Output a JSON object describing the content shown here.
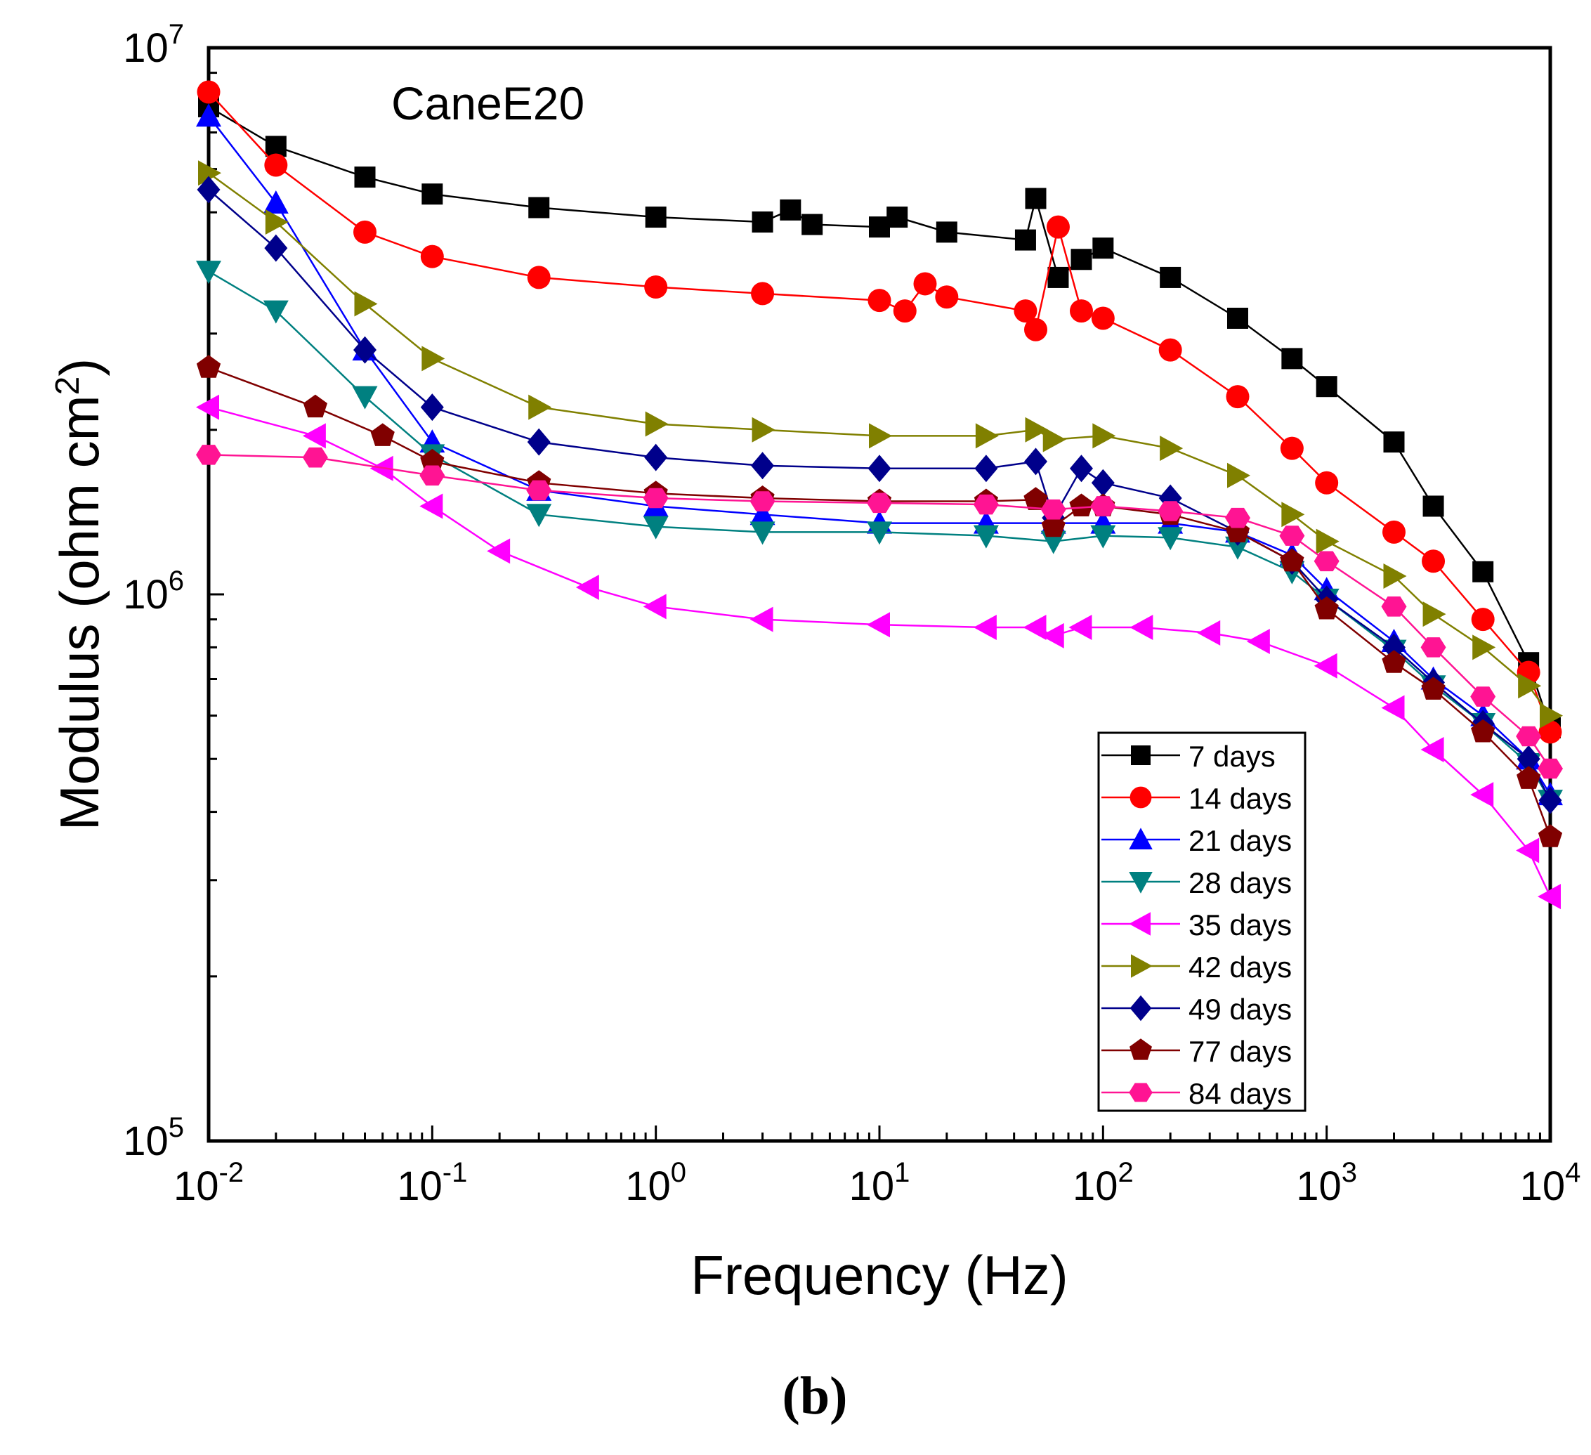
{
  "chart_data": {
    "type": "line",
    "annotation": "CaneE20",
    "xlabel": "Frequency (Hz)",
    "ylabel": "Modulus (ohm cm",
    "ylabel_sup": "2",
    "ylabel_close": ")",
    "caption_text": "(b)",
    "xscale": "log",
    "yscale": "log",
    "xlim": [
      0.01,
      10000
    ],
    "ylim": [
      100000,
      10000000
    ],
    "x_ticks": [
      {
        "base": "10",
        "exp": "-2",
        "value": 0.01
      },
      {
        "base": "10",
        "exp": "-1",
        "value": 0.1
      },
      {
        "base": "10",
        "exp": "0",
        "value": 1
      },
      {
        "base": "10",
        "exp": "1",
        "value": 10
      },
      {
        "base": "10",
        "exp": "2",
        "value": 100
      },
      {
        "base": "10",
        "exp": "3",
        "value": 1000
      },
      {
        "base": "10",
        "exp": "4",
        "value": 10000
      }
    ],
    "y_ticks": [
      {
        "base": "10",
        "exp": "5",
        "value": 100000
      },
      {
        "base": "10",
        "exp": "6",
        "value": 1000000
      },
      {
        "base": "10",
        "exp": "7",
        "value": 10000000
      }
    ],
    "legend_position": "bottom-right",
    "series": [
      {
        "name": "7 days",
        "marker": "square",
        "color": "#000000",
        "points": [
          [
            0.01,
            7800000
          ],
          [
            0.02,
            6600000
          ],
          [
            0.05,
            5800000
          ],
          [
            0.1,
            5400000
          ],
          [
            0.3,
            5100000
          ],
          [
            1,
            4900000
          ],
          [
            3,
            4800000
          ],
          [
            4,
            5050000
          ],
          [
            5,
            4750000
          ],
          [
            10,
            4700000
          ],
          [
            12,
            4900000
          ],
          [
            20,
            4600000
          ],
          [
            45,
            4450000
          ],
          [
            50,
            5300000
          ],
          [
            63,
            3800000
          ],
          [
            80,
            4100000
          ],
          [
            100,
            4300000
          ],
          [
            200,
            3800000
          ],
          [
            400,
            3200000
          ],
          [
            700,
            2700000
          ],
          [
            1000,
            2400000
          ],
          [
            2000,
            1900000
          ],
          [
            3000,
            1450000
          ],
          [
            5000,
            1100000
          ],
          [
            8000,
            750000
          ],
          [
            10000,
            570000
          ]
        ]
      },
      {
        "name": "14 days",
        "marker": "circle",
        "color": "#ff0000",
        "points": [
          [
            0.01,
            8300000
          ],
          [
            0.02,
            6100000
          ],
          [
            0.05,
            4600000
          ],
          [
            0.1,
            4150000
          ],
          [
            0.3,
            3800000
          ],
          [
            1,
            3650000
          ],
          [
            3,
            3550000
          ],
          [
            10,
            3450000
          ],
          [
            13,
            3300000
          ],
          [
            16,
            3700000
          ],
          [
            20,
            3500000
          ],
          [
            45,
            3300000
          ],
          [
            50,
            3050000
          ],
          [
            63,
            4700000
          ],
          [
            80,
            3300000
          ],
          [
            100,
            3200000
          ],
          [
            200,
            2800000
          ],
          [
            400,
            2300000
          ],
          [
            700,
            1850000
          ],
          [
            1000,
            1600000
          ],
          [
            2000,
            1300000
          ],
          [
            3000,
            1150000
          ],
          [
            5000,
            900000
          ],
          [
            8000,
            720000
          ],
          [
            10000,
            560000
          ]
        ]
      },
      {
        "name": "21 days",
        "marker": "triangle-up",
        "color": "#0000ff",
        "points": [
          [
            0.01,
            7500000
          ],
          [
            0.02,
            5200000
          ],
          [
            0.05,
            2800000
          ],
          [
            0.1,
            1900000
          ],
          [
            0.3,
            1550000
          ],
          [
            1,
            1450000
          ],
          [
            3,
            1400000
          ],
          [
            10,
            1350000
          ],
          [
            30,
            1350000
          ],
          [
            60,
            1350000
          ],
          [
            100,
            1350000
          ],
          [
            200,
            1350000
          ],
          [
            400,
            1300000
          ],
          [
            700,
            1180000
          ],
          [
            1000,
            1020000
          ],
          [
            2000,
            820000
          ],
          [
            3000,
            700000
          ],
          [
            5000,
            600000
          ],
          [
            8000,
            500000
          ],
          [
            10000,
            430000
          ]
        ]
      },
      {
        "name": "28 days",
        "marker": "triangle-down",
        "color": "#008080",
        "points": [
          [
            0.01,
            3900000
          ],
          [
            0.02,
            3300000
          ],
          [
            0.05,
            2300000
          ],
          [
            0.1,
            1800000
          ],
          [
            0.3,
            1400000
          ],
          [
            1,
            1330000
          ],
          [
            3,
            1300000
          ],
          [
            10,
            1300000
          ],
          [
            30,
            1280000
          ],
          [
            60,
            1250000
          ],
          [
            100,
            1280000
          ],
          [
            200,
            1270000
          ],
          [
            400,
            1220000
          ],
          [
            700,
            1100000
          ],
          [
            1000,
            980000
          ],
          [
            2000,
            790000
          ],
          [
            3000,
            680000
          ],
          [
            5000,
            580000
          ],
          [
            8000,
            490000
          ],
          [
            10000,
            420000
          ]
        ]
      },
      {
        "name": "35 days",
        "marker": "triangle-left",
        "color": "#ff00ff",
        "points": [
          [
            0.01,
            2200000
          ],
          [
            0.03,
            1950000
          ],
          [
            0.06,
            1700000
          ],
          [
            0.1,
            1450000
          ],
          [
            0.2,
            1200000
          ],
          [
            0.5,
            1030000
          ],
          [
            1,
            950000
          ],
          [
            3,
            900000
          ],
          [
            10,
            880000
          ],
          [
            30,
            870000
          ],
          [
            50,
            870000
          ],
          [
            60,
            840000
          ],
          [
            80,
            870000
          ],
          [
            150,
            870000
          ],
          [
            300,
            850000
          ],
          [
            500,
            820000
          ],
          [
            1000,
            740000
          ],
          [
            2000,
            620000
          ],
          [
            3000,
            520000
          ],
          [
            5000,
            430000
          ],
          [
            8000,
            340000
          ],
          [
            10000,
            280000
          ]
        ]
      },
      {
        "name": "42 days",
        "marker": "triangle-right",
        "color": "#808000",
        "points": [
          [
            0.01,
            5900000
          ],
          [
            0.02,
            4800000
          ],
          [
            0.05,
            3400000
          ],
          [
            0.1,
            2700000
          ],
          [
            0.3,
            2200000
          ],
          [
            1,
            2050000
          ],
          [
            3,
            2000000
          ],
          [
            10,
            1950000
          ],
          [
            30,
            1950000
          ],
          [
            50,
            2000000
          ],
          [
            60,
            1920000
          ],
          [
            100,
            1950000
          ],
          [
            200,
            1850000
          ],
          [
            400,
            1650000
          ],
          [
            700,
            1400000
          ],
          [
            1000,
            1250000
          ],
          [
            2000,
            1080000
          ],
          [
            3000,
            920000
          ],
          [
            5000,
            800000
          ],
          [
            8000,
            680000
          ],
          [
            10000,
            600000
          ]
        ]
      },
      {
        "name": "49 days",
        "marker": "diamond",
        "color": "#00008b",
        "points": [
          [
            0.01,
            5500000
          ],
          [
            0.02,
            4300000
          ],
          [
            0.05,
            2800000
          ],
          [
            0.1,
            2200000
          ],
          [
            0.3,
            1900000
          ],
          [
            1,
            1780000
          ],
          [
            3,
            1720000
          ],
          [
            10,
            1700000
          ],
          [
            30,
            1700000
          ],
          [
            50,
            1750000
          ],
          [
            60,
            1380000
          ],
          [
            80,
            1700000
          ],
          [
            100,
            1600000
          ],
          [
            200,
            1500000
          ],
          [
            400,
            1300000
          ],
          [
            700,
            1150000
          ],
          [
            1000,
            980000
          ],
          [
            2000,
            800000
          ],
          [
            3000,
            690000
          ],
          [
            5000,
            580000
          ],
          [
            8000,
            500000
          ],
          [
            10000,
            420000
          ]
        ]
      },
      {
        "name": "77 days",
        "marker": "pentagon",
        "color": "#800000",
        "points": [
          [
            0.01,
            2600000
          ],
          [
            0.03,
            2200000
          ],
          [
            0.06,
            1950000
          ],
          [
            0.1,
            1750000
          ],
          [
            0.3,
            1600000
          ],
          [
            1,
            1530000
          ],
          [
            3,
            1500000
          ],
          [
            10,
            1480000
          ],
          [
            30,
            1480000
          ],
          [
            50,
            1490000
          ],
          [
            60,
            1330000
          ],
          [
            80,
            1450000
          ],
          [
            100,
            1450000
          ],
          [
            200,
            1400000
          ],
          [
            400,
            1300000
          ],
          [
            700,
            1150000
          ],
          [
            1000,
            940000
          ],
          [
            2000,
            750000
          ],
          [
            3000,
            670000
          ],
          [
            5000,
            560000
          ],
          [
            8000,
            460000
          ],
          [
            10000,
            360000
          ]
        ]
      },
      {
        "name": "84 days",
        "marker": "hexagon",
        "color": "#ff1493",
        "points": [
          [
            0.01,
            1800000
          ],
          [
            0.03,
            1780000
          ],
          [
            0.1,
            1650000
          ],
          [
            0.3,
            1550000
          ],
          [
            1,
            1500000
          ],
          [
            3,
            1480000
          ],
          [
            10,
            1470000
          ],
          [
            30,
            1460000
          ],
          [
            60,
            1430000
          ],
          [
            100,
            1450000
          ],
          [
            200,
            1420000
          ],
          [
            400,
            1380000
          ],
          [
            700,
            1280000
          ],
          [
            1000,
            1150000
          ],
          [
            2000,
            950000
          ],
          [
            3000,
            800000
          ],
          [
            5000,
            650000
          ],
          [
            8000,
            550000
          ],
          [
            10000,
            480000
          ]
        ]
      }
    ]
  }
}
